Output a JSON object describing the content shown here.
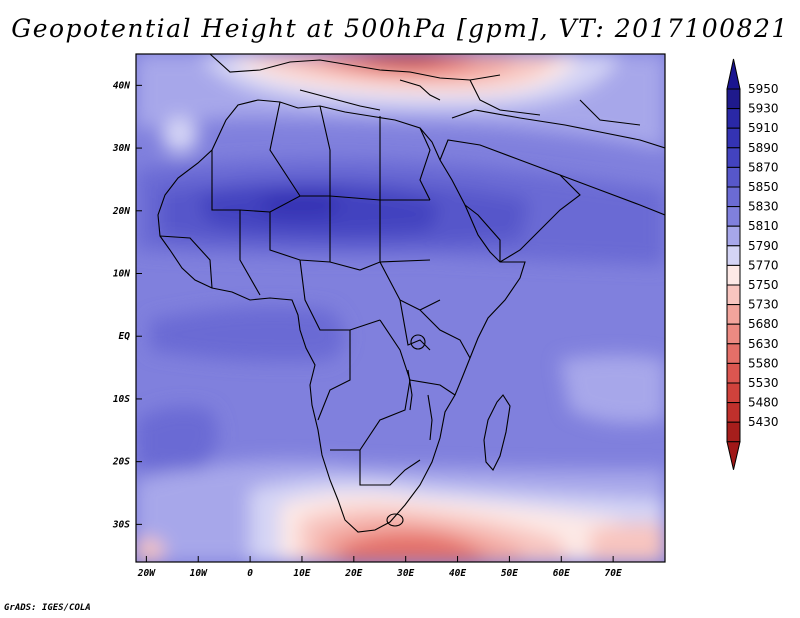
{
  "title": "Geopotential Height at 500hPa [gpm], VT: 2017100821",
  "credit": "GrADS: IGES/COLA",
  "map": {
    "lon_range": [
      -22,
      80
    ],
    "lat_range": [
      -36,
      45
    ],
    "lon_ticks": [
      "20W",
      "10W",
      "0",
      "10E",
      "20E",
      "30E",
      "40E",
      "50E",
      "60E",
      "70E"
    ],
    "lat_ticks": [
      "40N",
      "30N",
      "20N",
      "10N",
      "EQ",
      "10S",
      "20S",
      "30S"
    ]
  },
  "colorbar": {
    "levels": [
      {
        "label": "5950",
        "color": "#1f1a8c"
      },
      {
        "label": "5930",
        "color": "#2a28a6"
      },
      {
        "label": "5910",
        "color": "#3433b3"
      },
      {
        "label": "5890",
        "color": "#4343bf"
      },
      {
        "label": "5870",
        "color": "#5757ca"
      },
      {
        "label": "5850",
        "color": "#6b6bd4"
      },
      {
        "label": "5830",
        "color": "#8080dd"
      },
      {
        "label": "5810",
        "color": "#a7a7ea"
      },
      {
        "label": "5790",
        "color": "#d4d4f5"
      },
      {
        "label": "5770",
        "color": "#fde9e6"
      },
      {
        "label": "5750",
        "color": "#f8c5bf"
      },
      {
        "label": "5730",
        "color": "#f2a49c"
      },
      {
        "label": "5680",
        "color": "#ec8a82"
      },
      {
        "label": "5630",
        "color": "#e46f68"
      },
      {
        "label": "5580",
        "color": "#db5650"
      },
      {
        "label": "5530",
        "color": "#d0423c"
      },
      {
        "label": "5480",
        "color": "#c0302c"
      },
      {
        "label": "5430",
        "color": "#a61e1c"
      }
    ],
    "top_arrow_color": "#1a1590",
    "bottom_arrow_color": "#a01818"
  }
}
